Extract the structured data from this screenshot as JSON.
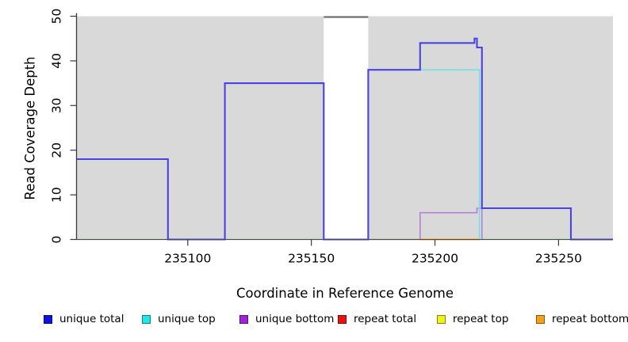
{
  "chart_data": {
    "type": "line",
    "subtype": "step-coverage",
    "title": "",
    "xlabel": "Coordinate in Reference Genome",
    "ylabel": "Read Coverage Depth",
    "xlim": [
      235055,
      235272
    ],
    "ylim": [
      0,
      50
    ],
    "x_ticks": [
      235100,
      235150,
      235200,
      235250
    ],
    "y_ticks": [
      0,
      10,
      20,
      30,
      40,
      50
    ],
    "grid": false,
    "legend_position": "bottom",
    "plot_bg": "#d9d9d9",
    "highlight_region": {
      "x_start": 235155,
      "x_end": 235173,
      "fill": "#ffffff",
      "top_line_color": "#6f6f6f",
      "top_line_y": 50
    },
    "zero_baseline": {
      "color": "#92cd92",
      "points": [
        [
          235055,
          0
        ],
        [
          235255,
          0
        ]
      ]
    },
    "series": [
      {
        "name": "unique total",
        "color": "#1111dd",
        "line_color": "#4b42e4",
        "points": [
          [
            235055,
            18
          ],
          [
            235092,
            18
          ],
          [
            235092,
            0
          ],
          [
            235115,
            0
          ],
          [
            235115,
            35
          ],
          [
            235155,
            35
          ],
          [
            235155,
            0
          ],
          [
            235173,
            0
          ],
          [
            235173,
            38
          ],
          [
            235194,
            38
          ],
          [
            235194,
            44
          ],
          [
            235216,
            44
          ],
          [
            235216,
            45
          ],
          [
            235217,
            45
          ],
          [
            235217,
            43
          ],
          [
            235219,
            43
          ],
          [
            235219,
            7
          ],
          [
            235255,
            7
          ],
          [
            235255,
            0
          ],
          [
            235272,
            0
          ]
        ]
      },
      {
        "name": "unique top",
        "color": "#22e5e5",
        "line_color": "#7fe0e0",
        "points": [
          [
            235194,
            38
          ],
          [
            235218,
            38
          ],
          [
            235218,
            0
          ]
        ]
      },
      {
        "name": "unique bottom",
        "color": "#a121dd",
        "line_color": "#b381da",
        "points": [
          [
            235194,
            0
          ],
          [
            235194,
            6
          ],
          [
            235217,
            6
          ],
          [
            235217,
            7
          ],
          [
            235219,
            7
          ],
          [
            235219,
            0
          ]
        ]
      },
      {
        "name": "repeat total",
        "color": "#e41414",
        "line_color": "#d4707e",
        "points": [
          [
            235173,
            0
          ],
          [
            235194,
            0
          ]
        ]
      },
      {
        "name": "repeat top",
        "color": "#f2f219",
        "line_color": "#f2f219",
        "points": []
      },
      {
        "name": "repeat bottom",
        "color": "#f5a117",
        "line_color": "#fca022",
        "points": [
          [
            235194,
            0
          ],
          [
            235218,
            0
          ]
        ]
      }
    ]
  }
}
